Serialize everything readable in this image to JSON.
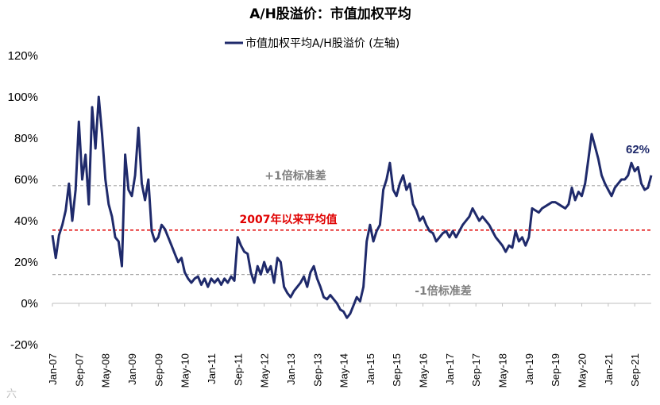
{
  "chart_data": {
    "type": "line",
    "title": "A/H股溢价：市值加权平均",
    "series": [
      {
        "name": "市值加权平均A/H股溢价 (左轴)",
        "color": "#1f2a6b",
        "points": [
          [
            "2007-01",
            33
          ],
          [
            "2007-02",
            22
          ],
          [
            "2007-03",
            33
          ],
          [
            "2007-04",
            38
          ],
          [
            "2007-05",
            45
          ],
          [
            "2007-06",
            58
          ],
          [
            "2007-07",
            40
          ],
          [
            "2007-08",
            55
          ],
          [
            "2007-09",
            88
          ],
          [
            "2007-10",
            60
          ],
          [
            "2007-11",
            72
          ],
          [
            "2007-12",
            48
          ],
          [
            "2008-01",
            95
          ],
          [
            "2008-02",
            75
          ],
          [
            "2008-03",
            100
          ],
          [
            "2008-04",
            82
          ],
          [
            "2008-05",
            60
          ],
          [
            "2008-06",
            48
          ],
          [
            "2008-07",
            42
          ],
          [
            "2008-08",
            32
          ],
          [
            "2008-09",
            30
          ],
          [
            "2008-10",
            18
          ],
          [
            "2008-11",
            72
          ],
          [
            "2008-12",
            55
          ],
          [
            "2009-01",
            52
          ],
          [
            "2009-02",
            62
          ],
          [
            "2009-03",
            85
          ],
          [
            "2009-04",
            58
          ],
          [
            "2009-05",
            50
          ],
          [
            "2009-06",
            60
          ],
          [
            "2009-07",
            35
          ],
          [
            "2009-08",
            30
          ],
          [
            "2009-09",
            32
          ],
          [
            "2009-10",
            38
          ],
          [
            "2009-11",
            36
          ],
          [
            "2009-12",
            32
          ],
          [
            "2010-01",
            28
          ],
          [
            "2010-02",
            24
          ],
          [
            "2010-03",
            20
          ],
          [
            "2010-04",
            22
          ],
          [
            "2010-05",
            15
          ],
          [
            "2010-06",
            12
          ],
          [
            "2010-07",
            10
          ],
          [
            "2010-08",
            12
          ],
          [
            "2010-09",
            13
          ],
          [
            "2010-10",
            9
          ],
          [
            "2010-11",
            12
          ],
          [
            "2010-12",
            8
          ],
          [
            "2011-01",
            12
          ],
          [
            "2011-02",
            10
          ],
          [
            "2011-03",
            12
          ],
          [
            "2011-04",
            9
          ],
          [
            "2011-05",
            12
          ],
          [
            "2011-06",
            10
          ],
          [
            "2011-07",
            13
          ],
          [
            "2011-08",
            11
          ],
          [
            "2011-09",
            32
          ],
          [
            "2011-10",
            28
          ],
          [
            "2011-11",
            25
          ],
          [
            "2011-12",
            24
          ],
          [
            "2012-01",
            15
          ],
          [
            "2012-02",
            10
          ],
          [
            "2012-03",
            18
          ],
          [
            "2012-04",
            14
          ],
          [
            "2012-05",
            20
          ],
          [
            "2012-06",
            15
          ],
          [
            "2012-07",
            18
          ],
          [
            "2012-08",
            10
          ],
          [
            "2012-09",
            22
          ],
          [
            "2012-10",
            20
          ],
          [
            "2012-11",
            8
          ],
          [
            "2012-12",
            5
          ],
          [
            "2013-01",
            3
          ],
          [
            "2013-02",
            6
          ],
          [
            "2013-03",
            8
          ],
          [
            "2013-04",
            10
          ],
          [
            "2013-05",
            13
          ],
          [
            "2013-06",
            8
          ],
          [
            "2013-07",
            15
          ],
          [
            "2013-08",
            18
          ],
          [
            "2013-09",
            12
          ],
          [
            "2013-10",
            8
          ],
          [
            "2013-11",
            3
          ],
          [
            "2013-12",
            2
          ],
          [
            "2014-01",
            4
          ],
          [
            "2014-02",
            2
          ],
          [
            "2014-03",
            0
          ],
          [
            "2014-04",
            -3
          ],
          [
            "2014-05",
            -4
          ],
          [
            "2014-06",
            -7
          ],
          [
            "2014-07",
            -5
          ],
          [
            "2014-08",
            -1
          ],
          [
            "2014-09",
            3
          ],
          [
            "2014-10",
            1
          ],
          [
            "2014-11",
            8
          ],
          [
            "2014-12",
            30
          ],
          [
            "2015-01",
            38
          ],
          [
            "2015-02",
            30
          ],
          [
            "2015-03",
            35
          ],
          [
            "2015-04",
            38
          ],
          [
            "2015-05",
            55
          ],
          [
            "2015-06",
            60
          ],
          [
            "2015-07",
            68
          ],
          [
            "2015-08",
            55
          ],
          [
            "2015-09",
            52
          ],
          [
            "2015-10",
            58
          ],
          [
            "2015-11",
            62
          ],
          [
            "2015-12",
            55
          ],
          [
            "2016-01",
            58
          ],
          [
            "2016-02",
            48
          ],
          [
            "2016-03",
            45
          ],
          [
            "2016-04",
            40
          ],
          [
            "2016-05",
            42
          ],
          [
            "2016-06",
            38
          ],
          [
            "2016-07",
            35
          ],
          [
            "2016-08",
            34
          ],
          [
            "2016-09",
            30
          ],
          [
            "2016-10",
            32
          ],
          [
            "2016-11",
            34
          ],
          [
            "2016-12",
            35
          ],
          [
            "2017-01",
            32
          ],
          [
            "2017-02",
            35
          ],
          [
            "2017-03",
            32
          ],
          [
            "2017-04",
            35
          ],
          [
            "2017-05",
            38
          ],
          [
            "2017-06",
            40
          ],
          [
            "2017-07",
            42
          ],
          [
            "2017-08",
            46
          ],
          [
            "2017-09",
            43
          ],
          [
            "2017-10",
            40
          ],
          [
            "2017-11",
            42
          ],
          [
            "2017-12",
            40
          ],
          [
            "2018-01",
            38
          ],
          [
            "2018-02",
            35
          ],
          [
            "2018-03",
            32
          ],
          [
            "2018-04",
            30
          ],
          [
            "2018-05",
            28
          ],
          [
            "2018-06",
            25
          ],
          [
            "2018-07",
            28
          ],
          [
            "2018-08",
            27
          ],
          [
            "2018-09",
            35
          ],
          [
            "2018-10",
            30
          ],
          [
            "2018-11",
            32
          ],
          [
            "2018-12",
            28
          ],
          [
            "2019-01",
            32
          ],
          [
            "2019-02",
            46
          ],
          [
            "2019-03",
            45
          ],
          [
            "2019-04",
            44
          ],
          [
            "2019-05",
            46
          ],
          [
            "2019-06",
            47
          ],
          [
            "2019-07",
            48
          ],
          [
            "2019-08",
            49
          ],
          [
            "2019-09",
            49
          ],
          [
            "2019-10",
            48
          ],
          [
            "2019-11",
            47
          ],
          [
            "2019-12",
            46
          ],
          [
            "2020-01",
            48
          ],
          [
            "2020-02",
            56
          ],
          [
            "2020-03",
            50
          ],
          [
            "2020-04",
            54
          ],
          [
            "2020-05",
            52
          ],
          [
            "2020-06",
            58
          ],
          [
            "2020-07",
            70
          ],
          [
            "2020-08",
            82
          ],
          [
            "2020-09",
            76
          ],
          [
            "2020-10",
            70
          ],
          [
            "2020-11",
            62
          ],
          [
            "2020-12",
            58
          ],
          [
            "2021-01",
            55
          ],
          [
            "2021-02",
            52
          ],
          [
            "2021-03",
            56
          ],
          [
            "2021-04",
            58
          ],
          [
            "2021-05",
            60
          ],
          [
            "2021-06",
            60
          ],
          [
            "2021-07",
            62
          ],
          [
            "2021-08",
            68
          ],
          [
            "2021-09",
            64
          ],
          [
            "2021-10",
            66
          ],
          [
            "2021-11",
            58
          ],
          [
            "2021-12",
            55
          ],
          [
            "2022-01",
            56
          ],
          [
            "2022-02",
            62
          ]
        ]
      }
    ],
    "x_ticks": [
      "Jan-07",
      "Sep-07",
      "May-08",
      "Jan-09",
      "Sep-09",
      "May-10",
      "Jan-11",
      "Sep-11",
      "May-12",
      "Jan-13",
      "Sep-13",
      "May-14",
      "Jan-15",
      "Sep-15",
      "May-16",
      "Jan-17",
      "Sep-17",
      "May-18",
      "Jan-19",
      "Sep-19",
      "May-20",
      "Jan-21",
      "Sep-21"
    ],
    "y_ticks": [
      "120%",
      "100%",
      "80%",
      "60%",
      "40%",
      "20%",
      "0%",
      "-20%"
    ],
    "ylim": [
      -20,
      120
    ],
    "reference_lines": [
      {
        "label": "+1倍标准差",
        "value": 57,
        "color": "#a6a6a6",
        "style": "dashed"
      },
      {
        "label": "2007年以来平均值",
        "value": 35.5,
        "color": "#e00000",
        "style": "dashed"
      },
      {
        "label": "-1倍标准差",
        "value": 14,
        "color": "#a6a6a6",
        "style": "dashed"
      }
    ],
    "end_label": "62%",
    "legend_position": "top-center"
  },
  "watermark": "六"
}
